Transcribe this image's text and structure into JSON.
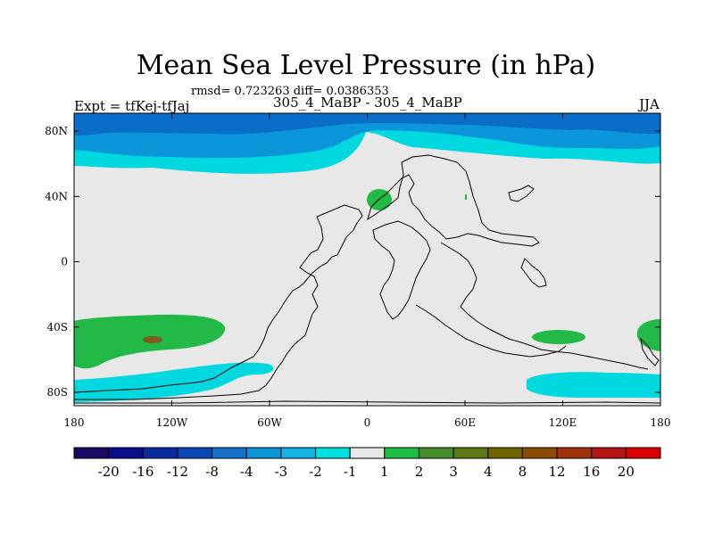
{
  "title": "Mean Sea Level Pressure (in hPa)",
  "stats": "rmsd= 0.723263 diff= 0.0386353",
  "experiment": "Expt = tfKej-tfJaj",
  "subtitle": "305_4_MaBP - 305_4_MaBP",
  "season": "JJA",
  "latitude_labels": [
    "80N",
    "40N",
    "0",
    "40S",
    "80S"
  ],
  "longitude_labels": [
    "180",
    "120W",
    "60W",
    "0",
    "60E",
    "120E",
    "180"
  ],
  "colorbar": {
    "labels": [
      "-20",
      "-16",
      "-12",
      "-8",
      "-4",
      "-3",
      "-2",
      "-1",
      "1",
      "2",
      "3",
      "4",
      "8",
      "12",
      "16",
      "20"
    ],
    "colors": [
      "#1a0a66",
      "#0a108c",
      "#0a2a9e",
      "#0a46b4",
      "#1470c8",
      "#0a96d8",
      "#14b4e4",
      "#00e0e0",
      "#e8e8e8",
      "#1ebe46",
      "#468c28",
      "#5a7814",
      "#6e6400",
      "#8c4b00",
      "#a0320a",
      "#b41414",
      "#dc0000"
    ]
  },
  "colors": {
    "background": "#e8e8e8",
    "dark_blue": "#0a6ec8",
    "mid_blue": "#0a96d8",
    "cyan": "#00d8e0",
    "green": "#23b946",
    "olive": "#7d5a1e"
  }
}
